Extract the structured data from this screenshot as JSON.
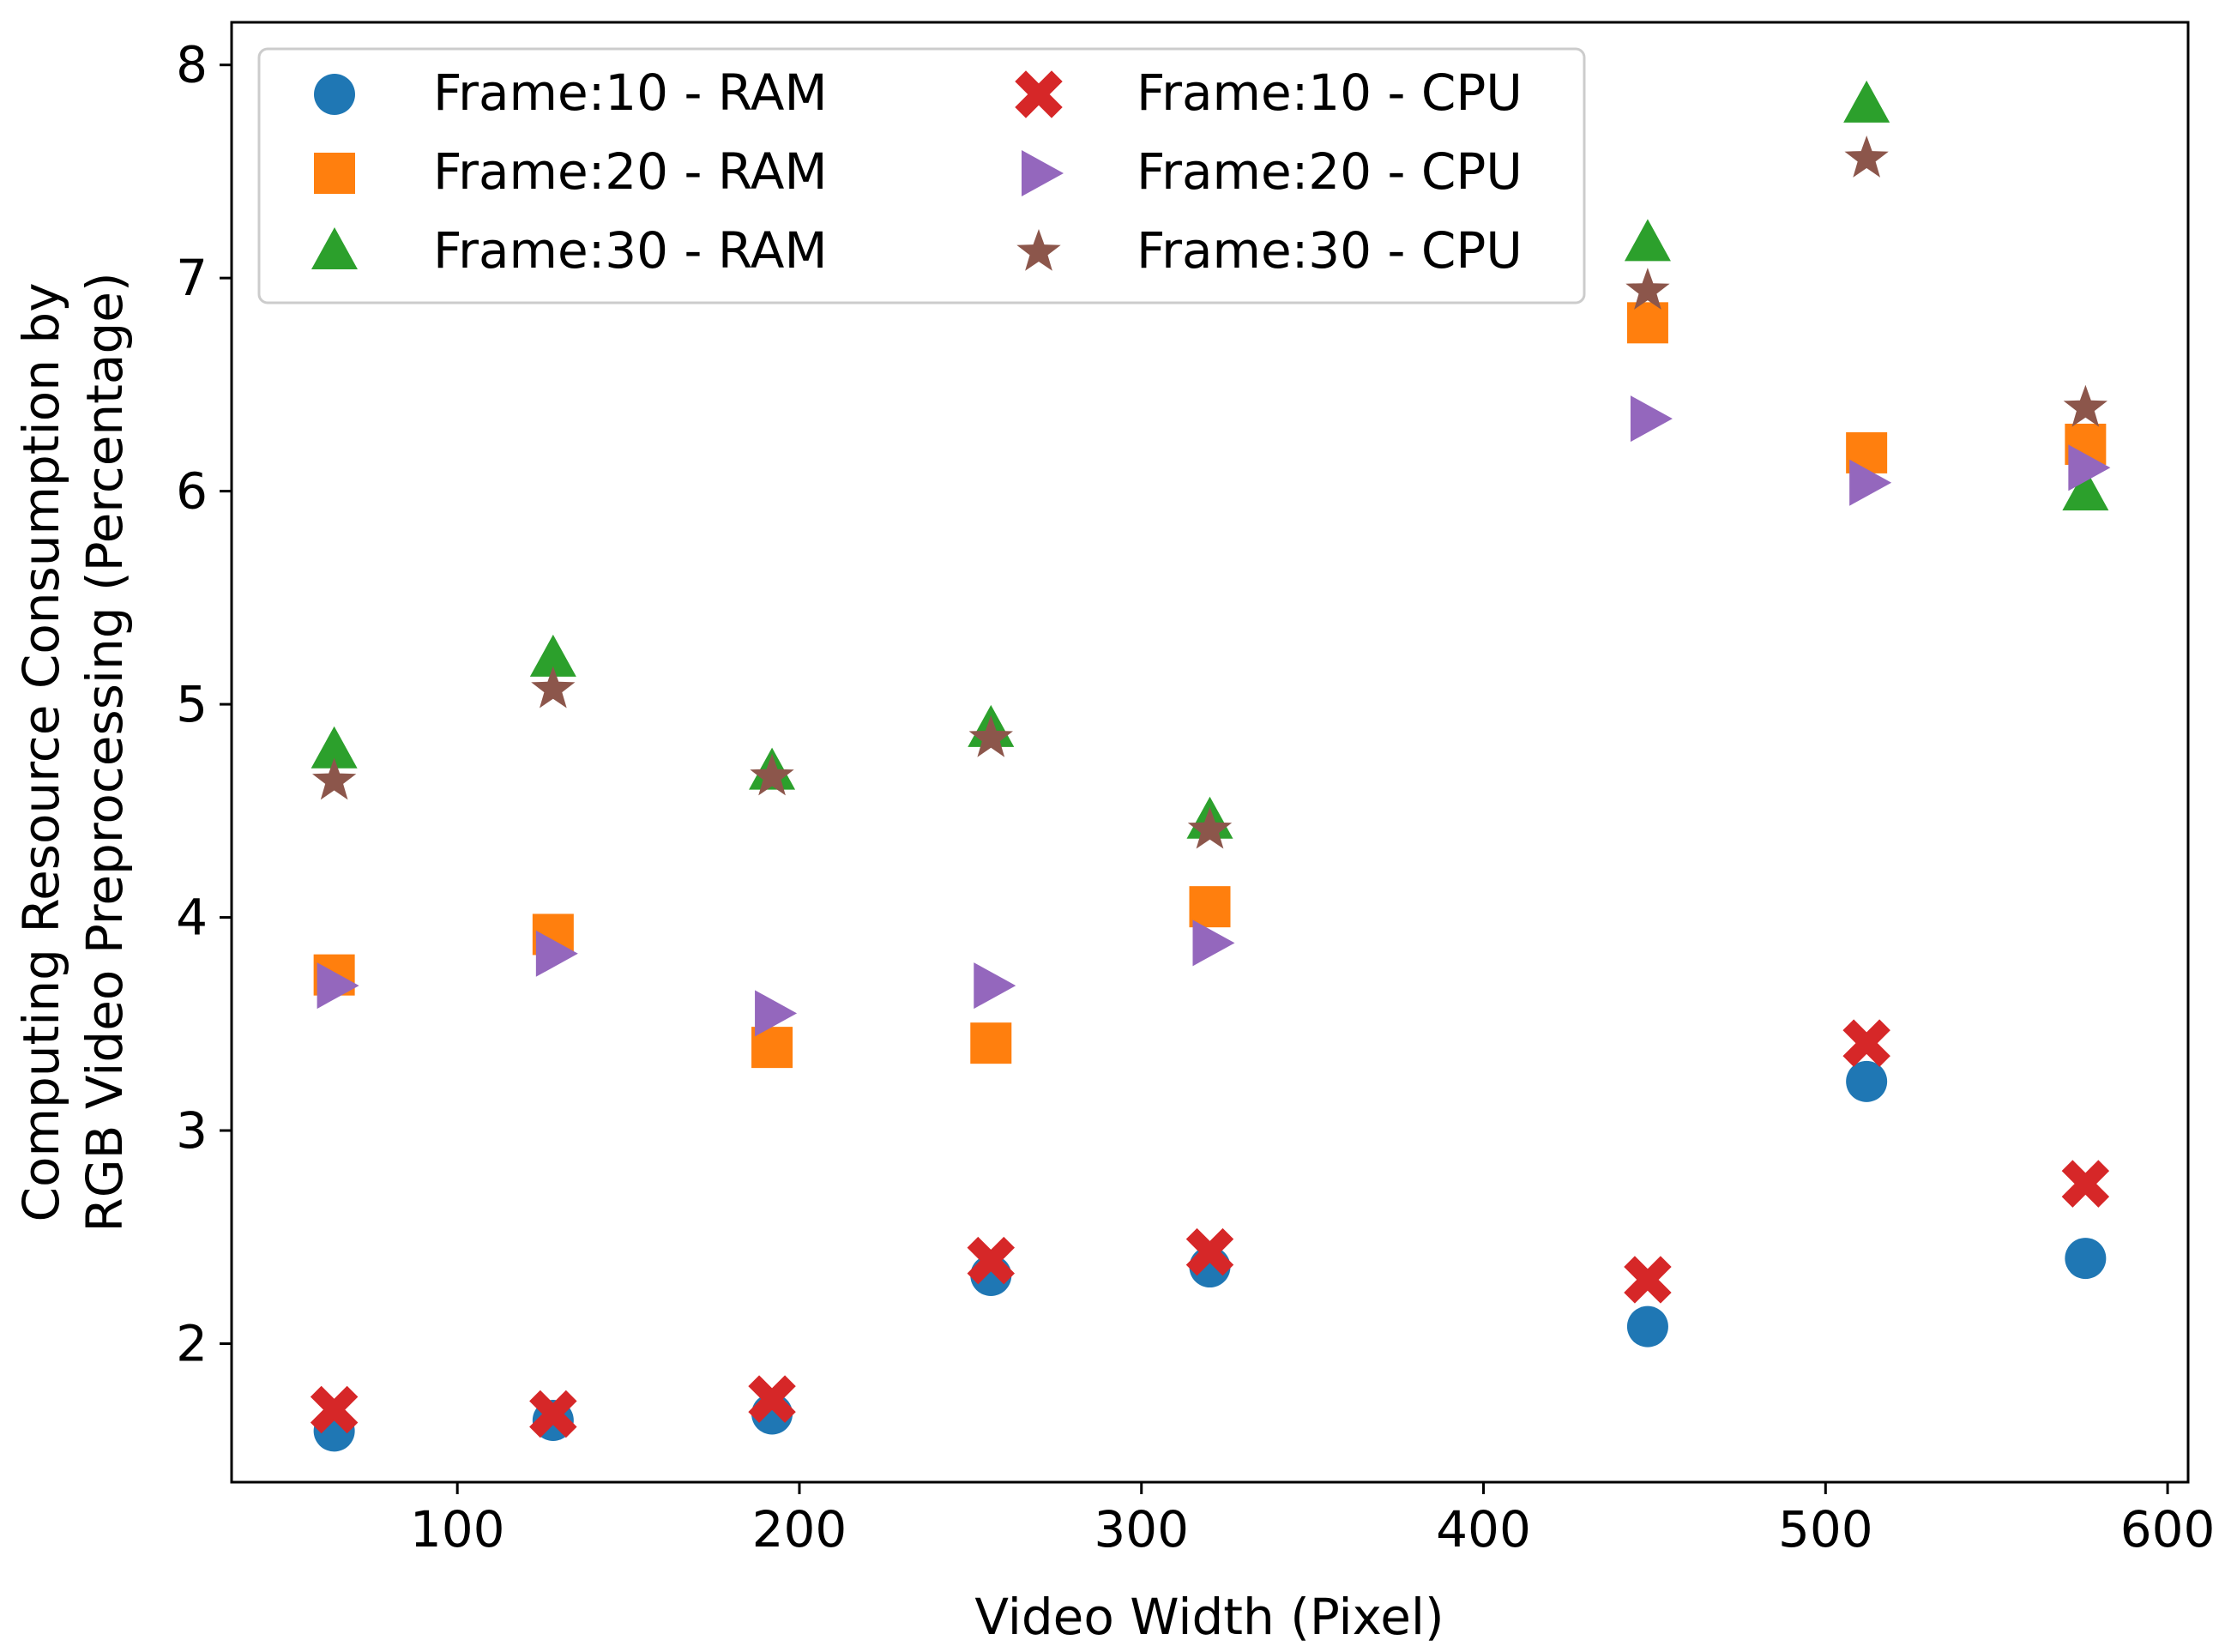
{
  "chart_data": {
    "type": "scatter",
    "title": "",
    "xlabel": "Video Width (Pixel)",
    "ylabel_lines": [
      "Computing Resource Consumption by",
      "RGB Video Preprocessing (Percentage)"
    ],
    "xlim": [
      34,
      606
    ],
    "ylim": [
      1.35,
      8.2
    ],
    "xticks": [
      100,
      200,
      300,
      400,
      500,
      600
    ],
    "yticks": [
      2,
      3,
      4,
      5,
      6,
      7,
      8
    ],
    "legend_position": "top-left",
    "x": [
      64,
      128,
      192,
      256,
      320,
      448,
      512,
      576
    ],
    "series": [
      {
        "name": "Frame:10 - RAM",
        "marker": "circle",
        "color": "#1f77b4",
        "values": [
          1.59,
          1.64,
          1.67,
          2.32,
          2.36,
          2.08,
          3.23,
          2.4
        ]
      },
      {
        "name": "Frame:20 - RAM",
        "marker": "square",
        "color": "#ff7f0e",
        "values": [
          3.73,
          3.92,
          3.39,
          3.41,
          4.05,
          6.79,
          6.18,
          6.22
        ]
      },
      {
        "name": "Frame:30 - RAM",
        "marker": "triangle-up",
        "color": "#2ca02c",
        "values": [
          4.78,
          5.21,
          4.68,
          4.88,
          4.45,
          7.16,
          7.81,
          5.99
        ]
      },
      {
        "name": "Frame:10 - CPU",
        "marker": "x-filled",
        "color": "#d62728",
        "values": [
          1.69,
          1.67,
          1.74,
          2.39,
          2.43,
          2.3,
          3.41,
          2.75
        ]
      },
      {
        "name": "Frame:20 - CPU",
        "marker": "triangle-right",
        "color": "#9467bd",
        "values": [
          3.68,
          3.83,
          3.55,
          3.68,
          3.88,
          6.34,
          6.04,
          6.11
        ]
      },
      {
        "name": "Frame:30 - CPU",
        "marker": "star",
        "color": "#8c564b",
        "values": [
          4.64,
          5.07,
          4.66,
          4.84,
          4.41,
          6.94,
          7.56,
          6.39
        ]
      }
    ]
  }
}
